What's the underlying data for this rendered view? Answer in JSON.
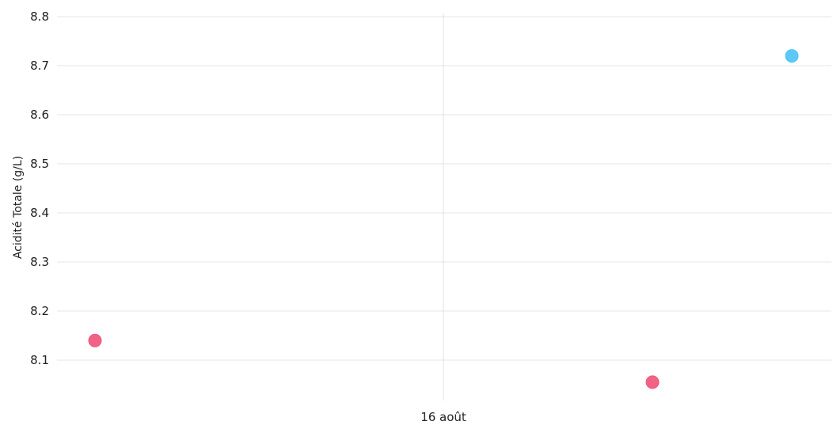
{
  "chart_data": {
    "type": "scatter",
    "title": "",
    "xlabel": "",
    "ylabel": "Acidité Totale (g/L)",
    "ylim": [
      8.02,
      8.8
    ],
    "yticks": [
      8.1,
      8.2,
      8.3,
      8.4,
      8.5,
      8.6,
      8.7,
      8.8
    ],
    "x_tick_label": "16 août",
    "grid": true,
    "legend": "none",
    "colors": {
      "pink": "#f0567a",
      "blue": "#4fc3f7"
    },
    "points": [
      {
        "x": "2024-08-11",
        "y": 8.14,
        "color": "#f0567a"
      },
      {
        "x": "2024-08-19",
        "y": 8.055,
        "color": "#f0567a"
      },
      {
        "x": "2024-08-21",
        "y": 8.72,
        "color": "#4fc3f7"
      }
    ]
  }
}
